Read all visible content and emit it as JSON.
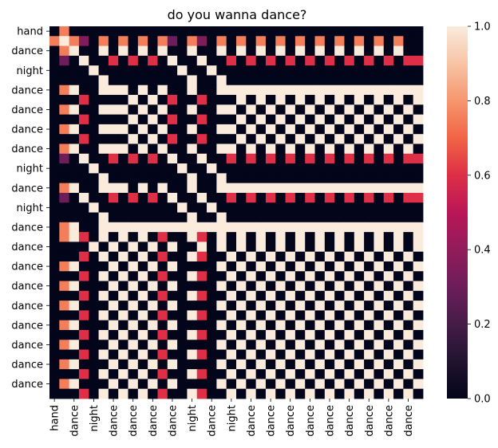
{
  "chart_data": {
    "type": "heatmap",
    "title": "do you wanna dance?",
    "xlabel": "",
    "ylabel": "",
    "x_tick_labels": [
      "hand",
      "dance",
      "night",
      "dance",
      "dance",
      "dance",
      "dance",
      "night",
      "dance",
      "night",
      "dance",
      "dance",
      "dance",
      "dance",
      "dance",
      "dance",
      "dance",
      "dance",
      "dance"
    ],
    "y_tick_labels": [
      "hand",
      "dance",
      "night",
      "dance",
      "dance",
      "dance",
      "dance",
      "night",
      "dance",
      "night",
      "dance",
      "dance",
      "dance",
      "dance",
      "dance",
      "dance",
      "dance",
      "dance",
      "dance"
    ],
    "colorbar": {
      "min": 0.0,
      "max": 1.0,
      "ticks": [
        "0.0",
        "0.2",
        "0.4",
        "0.6",
        "0.8",
        "1.0"
      ],
      "colormap": "rocket"
    },
    "grid": false,
    "matrix": [
      [
        0,
        0.75,
        0,
        0,
        0,
        0,
        0,
        0,
        0,
        0,
        0,
        0,
        0,
        0,
        0,
        0,
        0,
        0,
        0,
        0,
        0,
        0,
        0,
        0,
        0,
        0,
        0,
        0,
        0,
        0,
        0,
        0,
        0,
        0,
        0,
        0,
        0,
        0
      ],
      [
        0.75,
        1,
        0.75,
        0.35,
        0,
        0.75,
        0,
        0.75,
        0,
        0.75,
        0,
        0.75,
        0.3,
        0,
        0.75,
        0.35,
        0,
        0.75,
        0,
        0.75,
        0,
        0.75,
        0,
        0.75,
        0,
        0.75,
        0,
        0.75,
        0,
        0.75,
        0,
        0.75,
        0,
        0.75,
        0,
        0.75,
        0,
        0
      ],
      [
        0,
        0.75,
        1,
        0,
        0,
        1,
        0,
        1,
        0,
        1,
        0,
        1,
        0,
        0,
        1,
        0,
        0,
        1,
        0,
        1,
        0,
        1,
        0,
        1,
        0,
        1,
        0,
        1,
        0,
        1,
        0,
        1,
        0,
        1,
        0,
        1,
        0,
        0
      ],
      [
        0,
        0.3,
        0,
        1,
        0,
        0,
        0.6,
        0,
        0.6,
        0,
        0.6,
        0,
        1,
        0,
        0,
        1,
        0,
        0,
        0.6,
        0,
        0.6,
        0,
        0.6,
        0,
        0.6,
        0,
        0.6,
        0,
        0.6,
        0,
        0.6,
        0,
        0.6,
        0,
        0.6,
        0,
        0.6,
        0.6
      ],
      [
        0,
        0,
        0,
        0,
        1,
        0,
        0,
        0,
        0,
        0,
        0,
        0,
        0,
        1,
        0,
        0,
        1,
        0,
        0,
        0,
        0,
        0,
        0,
        0,
        0,
        0,
        0,
        0,
        0,
        0,
        0,
        0,
        0,
        0,
        0,
        0,
        0,
        0
      ],
      [
        0,
        0,
        0,
        0,
        0,
        1,
        0,
        0,
        0,
        0,
        0,
        0,
        0,
        0,
        1,
        0,
        0,
        1,
        0,
        0,
        0,
        0,
        0,
        0,
        0,
        0,
        0,
        0,
        0,
        0,
        0,
        0,
        0,
        0,
        0,
        0,
        0,
        0
      ],
      [
        0,
        0.75,
        1,
        0,
        0,
        1,
        1,
        1,
        0,
        1,
        0,
        1,
        0,
        0,
        1,
        0,
        0,
        1,
        1,
        1,
        1,
        1,
        1,
        1,
        1,
        1,
        1,
        1,
        1,
        1,
        1,
        1,
        1,
        1,
        1,
        1,
        1,
        1
      ],
      [
        0,
        0,
        0,
        0.6,
        0,
        0,
        0,
        0,
        1,
        0,
        1,
        0,
        0.6,
        0,
        0,
        0.6,
        0,
        0,
        0,
        1,
        0,
        1,
        0,
        1,
        0,
        1,
        0,
        1,
        0,
        1,
        0,
        1,
        0,
        1,
        0,
        1,
        0,
        1
      ],
      [
        0,
        0.75,
        1,
        0,
        0,
        1,
        1,
        1,
        0,
        1,
        0,
        1,
        0,
        0,
        1,
        0,
        0,
        1,
        1,
        0,
        1,
        0,
        1,
        0,
        1,
        0,
        1,
        0,
        1,
        0,
        1,
        0,
        1,
        0,
        1,
        0,
        1,
        0
      ],
      [
        0,
        0,
        0,
        0.6,
        0,
        0,
        0,
        0,
        1,
        0,
        1,
        0,
        0.6,
        0,
        0,
        0.6,
        0,
        0,
        0,
        1,
        0,
        1,
        0,
        1,
        0,
        1,
        0,
        1,
        0,
        1,
        0,
        1,
        0,
        1,
        0,
        1,
        0,
        1
      ],
      [
        0,
        0.75,
        1,
        0,
        0,
        1,
        1,
        1,
        0,
        1,
        0,
        1,
        0,
        0,
        1,
        0,
        0,
        1,
        1,
        0,
        1,
        0,
        1,
        0,
        1,
        0,
        1,
        0,
        1,
        0,
        1,
        0,
        1,
        0,
        1,
        0,
        1,
        0
      ],
      [
        0,
        0,
        0,
        0.6,
        0,
        0,
        0,
        0,
        1,
        0,
        1,
        0,
        0.6,
        0,
        0,
        0.6,
        0,
        0,
        0,
        1,
        0,
        1,
        0,
        1,
        0,
        1,
        0,
        1,
        0,
        1,
        0,
        1,
        0,
        1,
        0,
        1,
        0,
        1
      ],
      [
        0,
        0.75,
        1,
        0,
        0,
        1,
        1,
        1,
        0,
        1,
        0,
        1,
        0,
        0,
        1,
        0,
        0,
        1,
        1,
        0,
        1,
        0,
        1,
        0,
        1,
        0,
        1,
        0,
        1,
        0,
        1,
        0,
        1,
        0,
        1,
        0,
        1,
        0
      ],
      [
        0,
        0.3,
        0,
        1,
        0,
        0,
        0.6,
        0,
        0.6,
        0,
        0.6,
        0,
        1,
        0,
        0,
        1,
        0,
        0,
        0.6,
        0,
        0.6,
        0,
        0.6,
        0,
        0.6,
        0,
        0.6,
        0,
        0.6,
        0,
        0.6,
        0,
        0.6,
        0,
        0.6,
        0,
        0.6,
        0.6
      ],
      [
        0,
        0,
        0,
        0,
        1,
        0,
        0,
        0,
        0,
        0,
        0,
        0,
        0,
        1,
        0,
        0,
        1,
        0,
        0,
        0,
        0,
        0,
        0,
        0,
        0,
        0,
        0,
        0,
        0,
        0,
        0,
        0,
        0,
        0,
        0,
        0,
        0,
        0
      ],
      [
        0,
        0,
        0,
        0,
        0,
        1,
        0,
        0,
        0,
        0,
        0,
        0,
        0,
        0,
        1,
        0,
        0,
        1,
        0,
        0,
        0,
        0,
        0,
        0,
        0,
        0,
        0,
        0,
        0,
        0,
        0,
        0,
        0,
        0,
        0,
        0,
        0,
        0
      ],
      [
        0,
        0.75,
        1,
        0,
        0,
        1,
        1,
        1,
        0,
        1,
        0,
        1,
        0,
        0,
        1,
        0,
        0,
        1,
        1,
        1,
        1,
        1,
        1,
        1,
        1,
        1,
        1,
        1,
        1,
        1,
        1,
        1,
        1,
        1,
        1,
        1,
        1,
        1
      ],
      [
        0,
        0.3,
        0,
        1,
        0,
        0,
        0.6,
        0,
        0.6,
        0,
        0.6,
        0,
        1,
        0,
        0,
        1,
        0,
        0,
        0.6,
        0,
        0.6,
        0,
        0.6,
        0,
        0.6,
        0,
        0.6,
        0,
        0.6,
        0,
        0.6,
        0,
        0.6,
        0,
        0.6,
        0,
        0.6,
        0.6
      ],
      [
        0,
        0,
        0,
        0,
        1,
        0,
        0,
        0,
        0,
        0,
        0,
        0,
        0,
        1,
        0,
        0,
        1,
        0,
        0,
        0,
        0,
        0,
        0,
        0,
        0,
        0,
        0,
        0,
        0,
        0,
        0,
        0,
        0,
        0,
        0,
        0,
        0,
        0
      ],
      [
        0,
        0,
        0,
        0,
        0,
        1,
        0,
        0,
        0,
        0,
        0,
        0,
        0,
        0,
        1,
        0,
        0,
        1,
        0,
        0,
        0,
        0,
        0,
        0,
        0,
        0,
        0,
        0,
        0,
        0,
        0,
        0,
        0,
        0,
        0,
        0,
        0,
        0
      ],
      [
        0,
        0.75,
        1,
        0,
        0,
        1,
        1,
        1,
        1,
        1,
        1,
        1,
        1,
        1,
        1,
        1,
        1,
        1,
        1,
        1,
        1,
        1,
        1,
        1,
        1,
        1,
        1,
        1,
        1,
        1,
        1,
        1,
        1,
        1,
        1,
        1,
        1,
        1
      ],
      [
        0,
        0.75,
        1,
        0.6,
        0,
        1,
        0,
        1,
        0,
        1,
        0,
        0.6,
        0,
        0,
        1,
        0.6,
        0,
        1,
        0,
        1,
        0,
        1,
        0,
        1,
        0,
        1,
        0,
        1,
        0,
        1,
        0,
        1,
        0,
        1,
        0,
        1,
        0,
        1
      ],
      [
        0,
        0,
        0,
        0,
        1,
        0,
        1,
        0,
        1,
        0,
        1,
        0,
        1,
        0,
        0,
        1,
        0,
        1,
        0,
        1,
        0,
        1,
        0,
        1,
        0,
        1,
        0,
        1,
        0,
        1,
        0,
        1,
        0,
        1,
        0,
        1,
        0,
        1
      ],
      [
        0,
        0,
        0,
        0.6,
        0,
        1,
        0,
        1,
        0,
        1,
        0,
        0.6,
        0,
        0,
        1,
        0.6,
        0,
        0,
        1,
        0,
        1,
        0,
        1,
        0,
        1,
        0,
        1,
        0,
        1,
        0,
        1,
        0,
        1,
        0,
        1,
        0,
        1,
        0
      ],
      [
        0,
        0.75,
        1,
        0,
        0,
        0,
        1,
        0,
        1,
        0,
        1,
        0,
        1,
        0,
        0,
        0,
        0,
        1,
        0,
        1,
        0,
        1,
        0,
        1,
        0,
        1,
        0,
        1,
        0,
        1,
        0,
        1,
        0,
        1,
        0,
        1,
        0,
        1
      ],
      [
        0,
        0,
        0,
        0.6,
        0,
        1,
        0,
        1,
        0,
        1,
        0,
        0.6,
        0,
        0,
        1,
        0.6,
        0,
        0,
        1,
        0,
        1,
        0,
        1,
        0,
        1,
        0,
        1,
        0,
        1,
        0,
        1,
        0,
        1,
        0,
        1,
        0,
        1,
        0
      ],
      [
        0,
        0.75,
        1,
        0,
        0,
        0,
        1,
        0,
        1,
        0,
        1,
        0,
        1,
        0,
        0,
        0,
        0,
        1,
        0,
        1,
        0,
        1,
        0,
        1,
        0,
        1,
        0,
        1,
        0,
        1,
        0,
        1,
        0,
        1,
        0,
        1,
        0,
        1
      ],
      [
        0,
        0,
        0,
        0.6,
        0,
        1,
        0,
        1,
        0,
        1,
        0,
        0.6,
        0,
        0,
        1,
        0.6,
        0,
        0,
        1,
        0,
        1,
        0,
        1,
        0,
        1,
        0,
        1,
        0,
        1,
        0,
        1,
        0,
        1,
        0,
        1,
        0,
        1,
        0
      ],
      [
        0,
        0.75,
        1,
        0,
        0,
        0,
        1,
        0,
        1,
        0,
        1,
        0,
        1,
        0,
        0,
        0,
        0,
        1,
        0,
        1,
        0,
        1,
        0,
        1,
        0,
        1,
        0,
        1,
        0,
        1,
        0,
        1,
        0,
        1,
        0,
        1,
        0,
        1
      ],
      [
        0,
        0,
        0,
        0.6,
        0,
        1,
        0,
        1,
        0,
        1,
        0,
        0.6,
        0,
        0,
        1,
        0.6,
        0,
        0,
        1,
        0,
        1,
        0,
        1,
        0,
        1,
        0,
        1,
        0,
        1,
        0,
        1,
        0,
        1,
        0,
        1,
        0,
        1,
        0
      ],
      [
        0,
        0.75,
        1,
        0,
        0,
        0,
        1,
        0,
        1,
        0,
        1,
        0,
        1,
        0,
        0,
        0,
        0,
        1,
        0,
        1,
        0,
        1,
        0,
        1,
        0,
        1,
        0,
        1,
        0,
        1,
        0,
        1,
        0,
        1,
        0,
        1,
        0,
        1
      ],
      [
        0,
        0,
        0,
        0.6,
        0,
        1,
        0,
        1,
        0,
        1,
        0,
        0.6,
        0,
        0,
        1,
        0.6,
        0,
        0,
        1,
        0,
        1,
        0,
        1,
        0,
        1,
        0,
        1,
        0,
        1,
        0,
        1,
        0,
        1,
        0,
        1,
        0,
        1,
        0
      ],
      [
        0,
        0.75,
        1,
        0,
        0,
        0,
        1,
        0,
        1,
        0,
        1,
        0,
        1,
        0,
        0,
        0,
        0,
        1,
        0,
        1,
        0,
        1,
        0,
        1,
        0,
        1,
        0,
        1,
        0,
        1,
        0,
        1,
        0,
        1,
        0,
        1,
        0,
        1
      ],
      [
        0,
        0,
        0,
        0.6,
        0,
        1,
        0,
        1,
        0,
        1,
        0,
        0.6,
        0,
        0,
        1,
        0.6,
        0,
        0,
        1,
        0,
        1,
        0,
        1,
        0,
        1,
        0,
        1,
        0,
        1,
        0,
        1,
        0,
        1,
        0,
        1,
        0,
        1,
        0
      ],
      [
        0,
        0.75,
        1,
        0,
        0,
        0,
        1,
        0,
        1,
        0,
        1,
        0,
        1,
        0,
        0,
        0,
        0,
        1,
        0,
        1,
        0,
        1,
        0,
        1,
        0,
        1,
        0,
        1,
        0,
        1,
        0,
        1,
        0,
        1,
        0,
        1,
        0,
        1
      ],
      [
        0,
        0,
        0,
        0.6,
        0,
        1,
        0,
        1,
        0,
        1,
        0,
        0.6,
        0,
        0,
        1,
        0.6,
        0,
        0,
        1,
        0,
        1,
        0,
        1,
        0,
        1,
        0,
        1,
        0,
        1,
        0,
        1,
        0,
        1,
        0,
        1,
        0,
        1,
        0
      ],
      [
        0,
        0.75,
        1,
        0,
        0,
        0,
        1,
        0,
        1,
        0,
        1,
        0,
        1,
        0,
        0,
        0,
        0,
        1,
        0,
        1,
        0,
        1,
        0,
        1,
        0,
        1,
        0,
        1,
        0,
        1,
        0,
        1,
        0,
        1,
        0,
        1,
        0,
        1
      ],
      [
        0,
        0,
        0,
        0.6,
        0,
        1,
        0,
        1,
        0,
        1,
        0,
        0.6,
        0,
        0,
        1,
        0.6,
        0,
        0,
        1,
        0,
        1,
        0,
        1,
        0,
        1,
        0,
        1,
        0,
        1,
        0,
        1,
        0,
        1,
        0,
        1,
        0,
        1,
        0
      ]
    ]
  }
}
